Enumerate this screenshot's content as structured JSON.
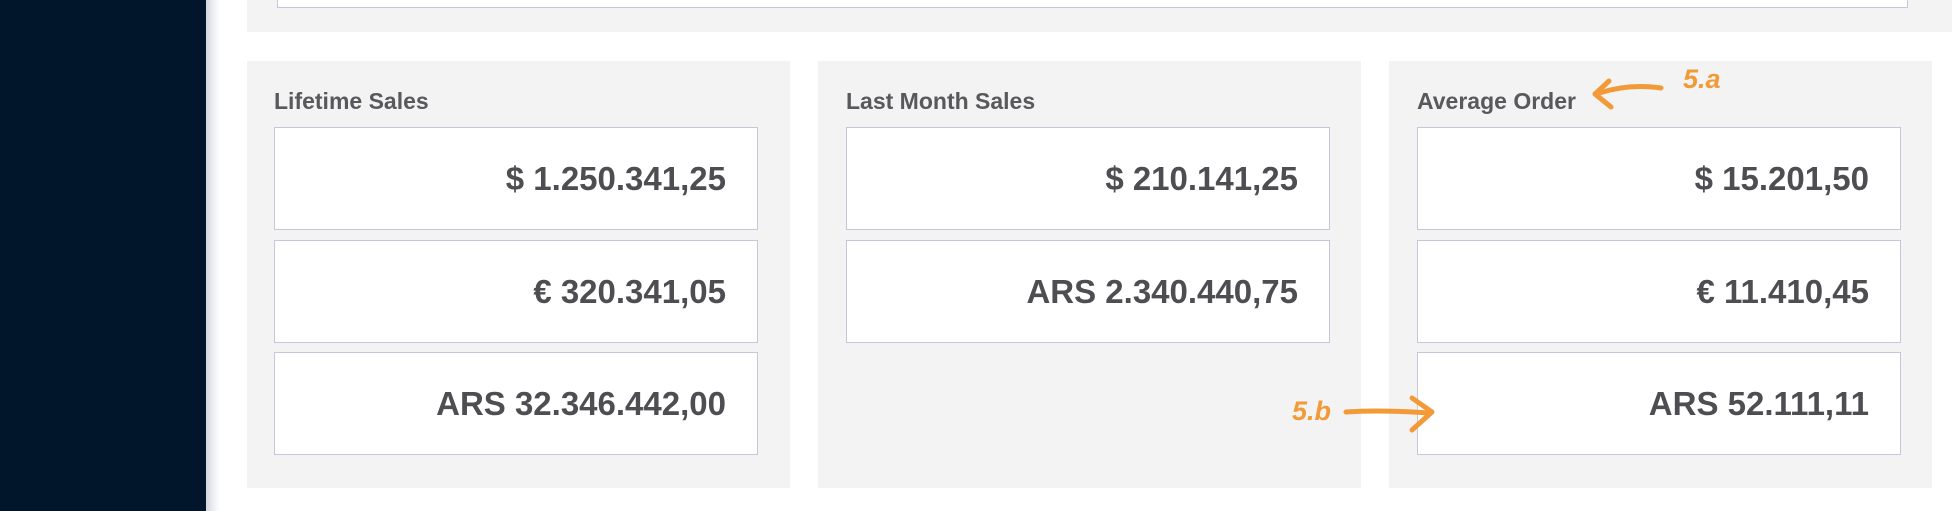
{
  "cards": [
    {
      "title": "Lifetime Sales",
      "values": [
        "$ 1.250.341,25",
        "€ 320.341,05",
        "ARS 32.346.442,00"
      ]
    },
    {
      "title": "Last Month Sales",
      "values": [
        "$ 210.141,25",
        "ARS 2.340.440,75"
      ]
    },
    {
      "title": "Average Order",
      "values": [
        "$ 15.201,50",
        "€ 11.410,45",
        "ARS 52.111,11"
      ]
    }
  ],
  "annotations": {
    "a": {
      "label": "5.a",
      "color": "#f29a38"
    },
    "b": {
      "label": "5.b",
      "color": "#f29a38"
    }
  },
  "colors": {
    "sidebar_bg": "#01162b",
    "card_bg": "#f3f3f3",
    "box_border": "#c9c5de",
    "text": "#4d4d52"
  }
}
